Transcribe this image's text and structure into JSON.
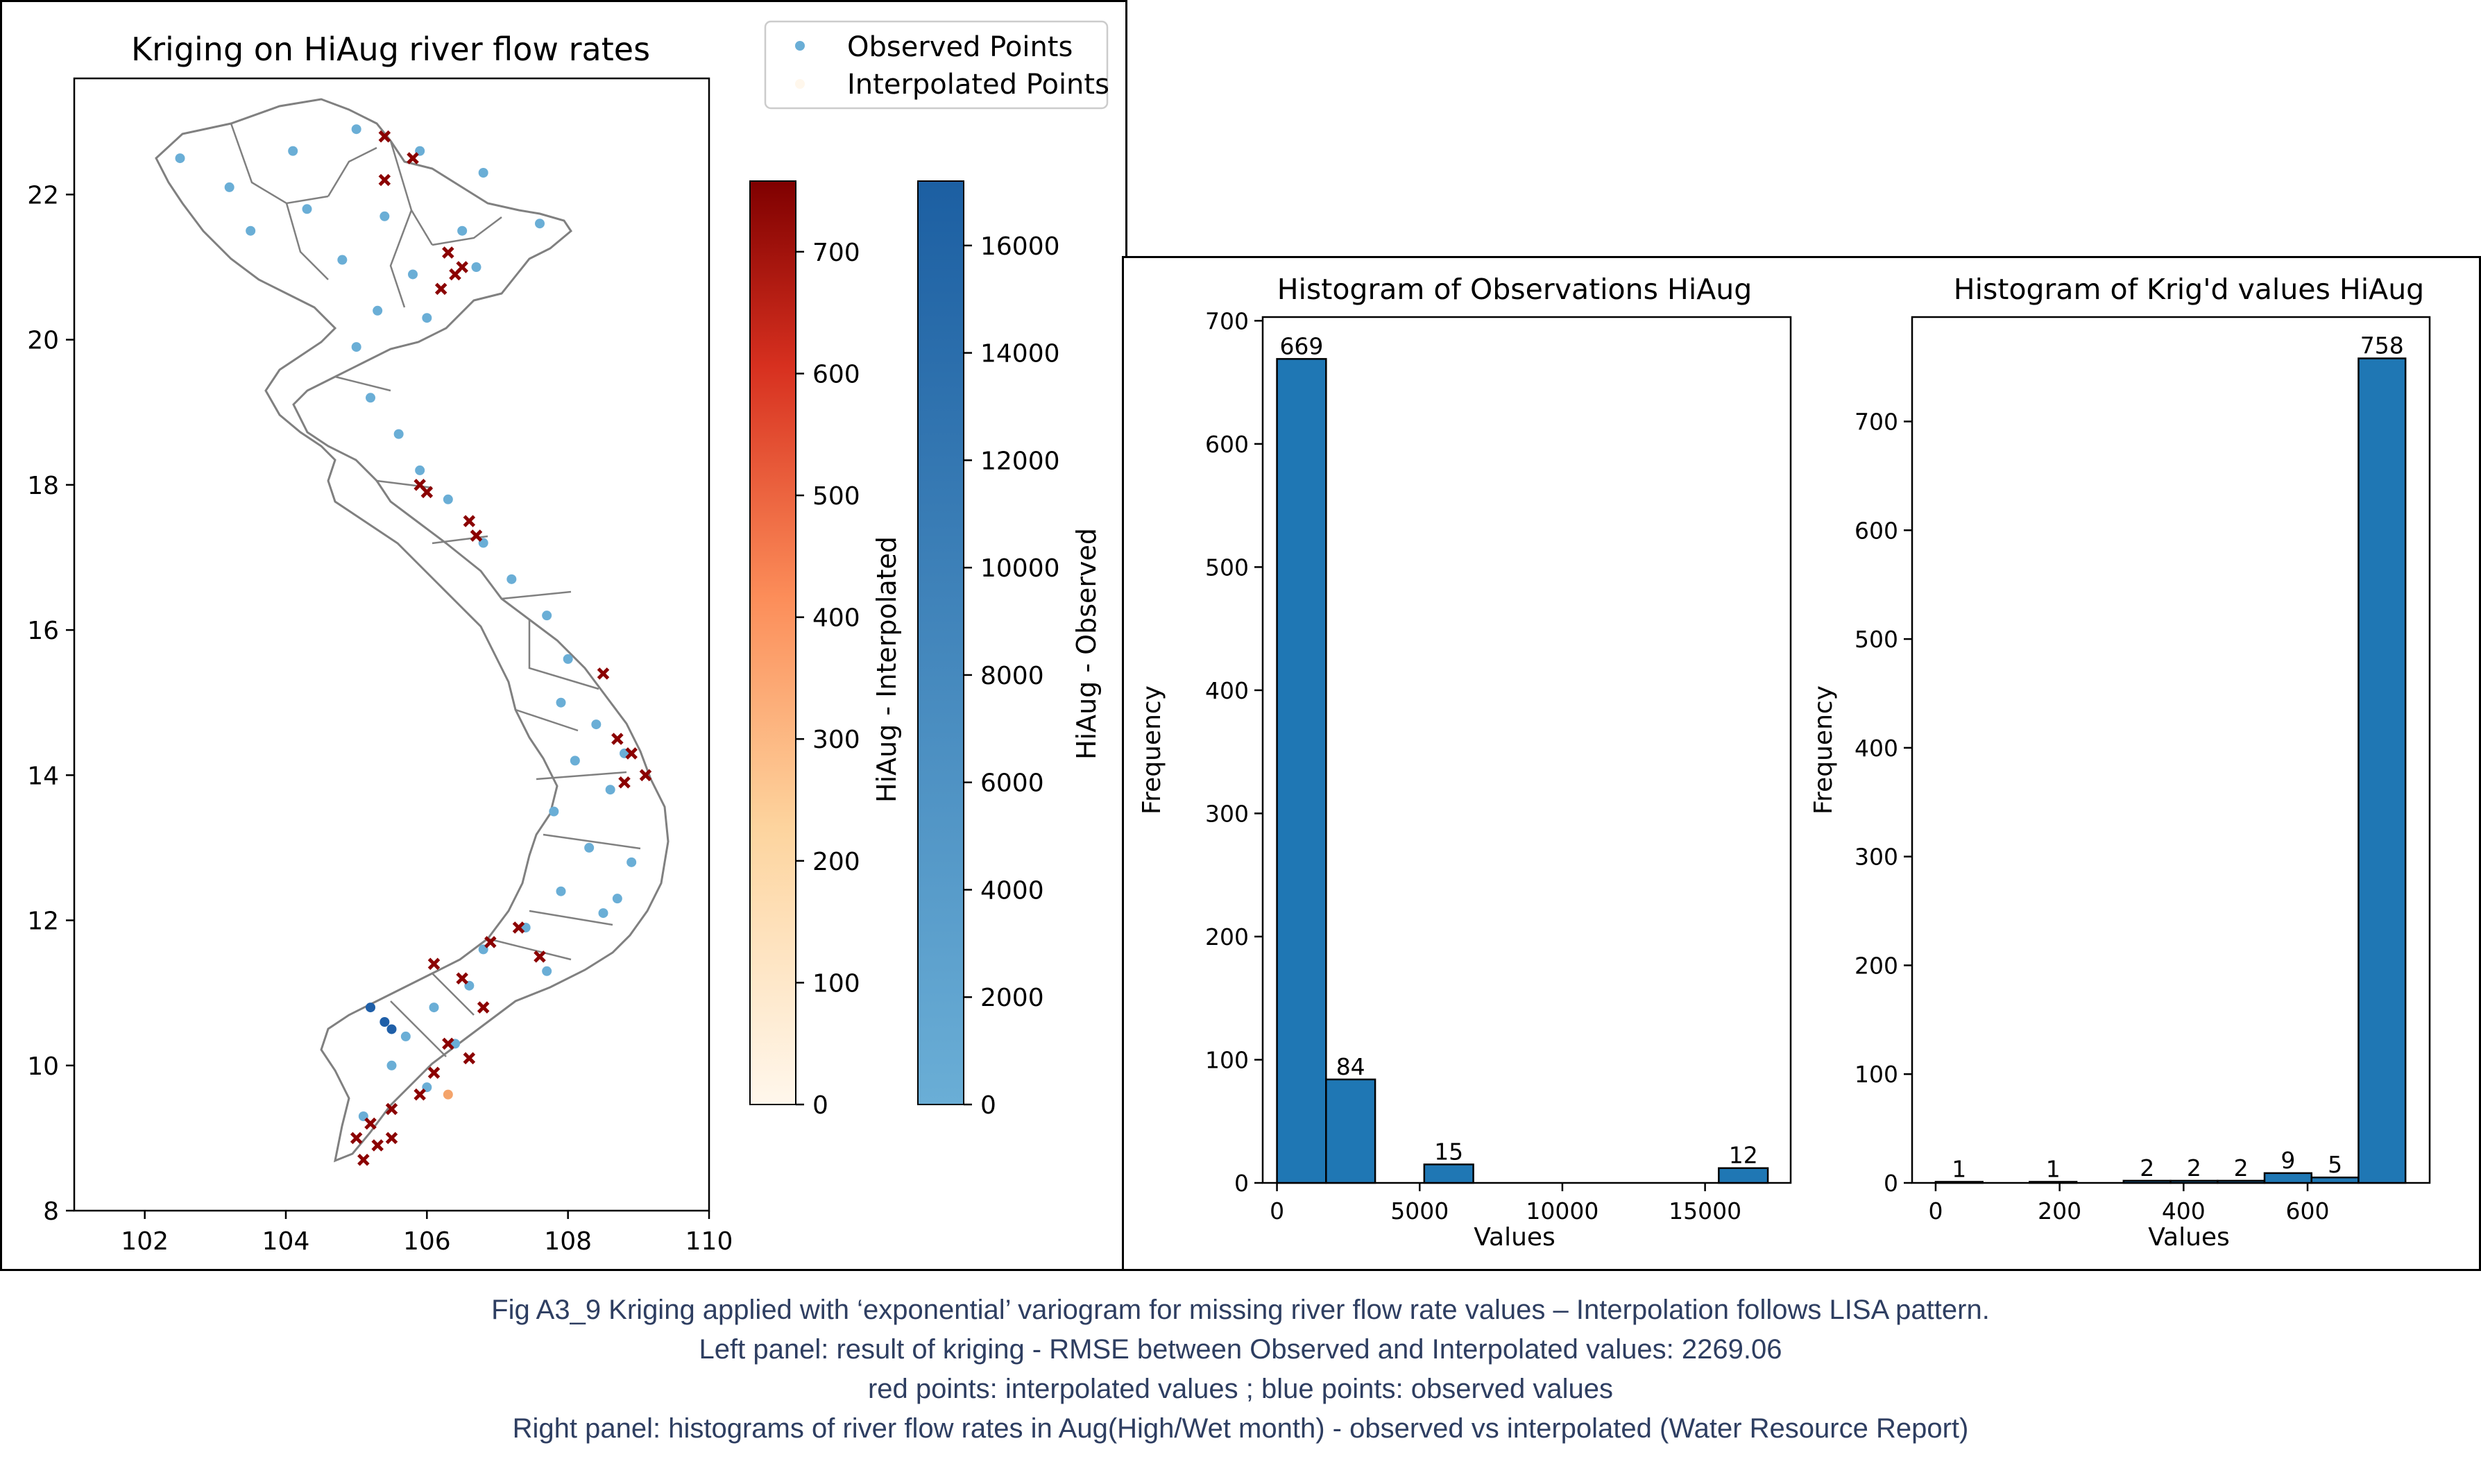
{
  "chart_data": [
    {
      "type": "scatter",
      "title": "Kriging on HiAug river flow rates",
      "xlabel": "",
      "ylabel": "",
      "xlim": [
        101,
        110
      ],
      "ylim": [
        8,
        23.6
      ],
      "xticks": [
        102,
        104,
        106,
        108,
        110
      ],
      "yticks": [
        8,
        10,
        12,
        14,
        16,
        18,
        20,
        22
      ],
      "legend": {
        "position": "top-right",
        "entries": [
          "Observed Points",
          "Interpolated Points"
        ]
      },
      "series": [
        {
          "name": "Observed Points",
          "marker": "dot",
          "color": "#6aaed6",
          "points": [
            [
              102.5,
              22.5
            ],
            [
              103.2,
              22.1
            ],
            [
              104.1,
              22.6
            ],
            [
              105.0,
              22.9
            ],
            [
              105.9,
              22.6
            ],
            [
              106.8,
              22.3
            ],
            [
              107.6,
              21.6
            ],
            [
              106.5,
              21.5
            ],
            [
              105.4,
              21.7
            ],
            [
              104.3,
              21.8
            ],
            [
              103.5,
              21.5
            ],
            [
              104.8,
              21.1
            ],
            [
              105.8,
              20.9
            ],
            [
              106.7,
              21.0
            ],
            [
              105.3,
              20.4
            ],
            [
              106.0,
              20.3
            ],
            [
              105.0,
              19.9
            ],
            [
              105.2,
              19.2
            ],
            [
              105.6,
              18.7
            ],
            [
              105.9,
              18.2
            ],
            [
              106.3,
              17.8
            ],
            [
              106.8,
              17.2
            ],
            [
              107.2,
              16.7
            ],
            [
              107.7,
              16.2
            ],
            [
              108.0,
              15.6
            ],
            [
              107.9,
              15.0
            ],
            [
              108.4,
              14.7
            ],
            [
              108.1,
              14.2
            ],
            [
              108.6,
              13.8
            ],
            [
              107.8,
              13.5
            ],
            [
              108.3,
              13.0
            ],
            [
              108.9,
              12.8
            ],
            [
              107.9,
              12.4
            ],
            [
              108.5,
              12.1
            ],
            [
              107.4,
              11.9
            ],
            [
              106.8,
              11.6
            ],
            [
              107.7,
              11.3
            ],
            [
              106.6,
              11.1
            ],
            [
              106.1,
              10.8
            ],
            [
              105.7,
              10.4
            ],
            [
              105.5,
              10.0
            ],
            [
              106.0,
              9.7
            ],
            [
              105.1,
              9.3
            ],
            [
              106.4,
              10.3
            ],
            [
              108.8,
              14.3
            ],
            [
              108.7,
              12.3
            ]
          ]
        },
        {
          "name": "Interpolated Points",
          "marker": "x",
          "color": "#8b0000",
          "points": [
            [
              106.3,
              21.2
            ],
            [
              106.4,
              20.9
            ],
            [
              106.2,
              20.7
            ],
            [
              106.5,
              21.0
            ],
            [
              105.4,
              22.8
            ],
            [
              105.8,
              22.5
            ],
            [
              105.4,
              22.2
            ],
            [
              105.9,
              18.0
            ],
            [
              106.0,
              17.9
            ],
            [
              106.6,
              17.5
            ],
            [
              106.7,
              17.3
            ],
            [
              108.7,
              14.5
            ],
            [
              108.9,
              14.3
            ],
            [
              109.1,
              14.0
            ],
            [
              108.8,
              13.9
            ],
            [
              108.5,
              15.4
            ],
            [
              106.1,
              11.4
            ],
            [
              106.5,
              11.2
            ],
            [
              106.9,
              11.7
            ],
            [
              107.3,
              11.9
            ],
            [
              107.6,
              11.5
            ],
            [
              106.8,
              10.8
            ],
            [
              106.3,
              10.3
            ],
            [
              106.6,
              10.1
            ],
            [
              106.1,
              9.9
            ],
            [
              105.9,
              9.6
            ],
            [
              105.5,
              9.4
            ],
            [
              105.2,
              9.2
            ],
            [
              105.0,
              9.0
            ],
            [
              105.3,
              8.9
            ],
            [
              105.1,
              8.7
            ],
            [
              105.5,
              9.0
            ]
          ]
        },
        {
          "name": "",
          "marker": "dot",
          "color": "#1f5fa8",
          "points": [
            [
              105.2,
              10.8
            ],
            [
              105.4,
              10.6
            ],
            [
              105.5,
              10.5
            ]
          ]
        },
        {
          "name": "",
          "marker": "dot",
          "color": "#f4a46b",
          "points": [
            [
              106.3,
              9.6
            ]
          ]
        }
      ],
      "colorbars": [
        {
          "label": "HiAug - Interpolated",
          "colormap": "OrRd",
          "range": [
            0,
            758
          ],
          "ticks": [
            0,
            100,
            200,
            300,
            400,
            500,
            600,
            700
          ],
          "color_low": "#fff7ec",
          "color_mid": "#fc8d59",
          "color_high": "#7f0000"
        },
        {
          "label": "HiAug - Observed",
          "colormap": "Blues",
          "range": [
            0,
            17200
          ],
          "ticks": [
            0,
            2000,
            4000,
            6000,
            8000,
            10000,
            12000,
            14000,
            16000
          ],
          "color_low": "#6aaed6",
          "color_high": "#1c5fa2"
        }
      ]
    },
    {
      "type": "bar",
      "title": "Histogram of Observations HiAug",
      "xlabel": "Values",
      "ylabel": "Frequency",
      "xlim": [
        -500,
        18000
      ],
      "ylim": [
        0,
        703
      ],
      "xticks": [
        0,
        5000,
        10000,
        15000
      ],
      "yticks": [
        0,
        100,
        200,
        300,
        400,
        500,
        600,
        700
      ],
      "bins": [
        [
          0,
          1720
        ],
        [
          1720,
          3440
        ],
        [
          3440,
          5160
        ],
        [
          5160,
          6880
        ],
        [
          6880,
          8600
        ],
        [
          8600,
          10320
        ],
        [
          10320,
          12040
        ],
        [
          12040,
          13760
        ],
        [
          13760,
          15480
        ],
        [
          15480,
          17200
        ]
      ],
      "values": [
        669,
        84,
        0,
        15,
        0,
        0,
        0,
        0,
        0,
        12
      ],
      "labels": [
        "669",
        "84",
        "",
        "15",
        "",
        "",
        "",
        "",
        "",
        "12"
      ],
      "color": "#1f77b4"
    },
    {
      "type": "bar",
      "title": "Histogram of Krig'd values HiAug",
      "xlabel": "Values",
      "ylabel": "Frequency",
      "xlim": [
        -38,
        797
      ],
      "ylim": [
        0,
        796
      ],
      "xticks": [
        0,
        200,
        400,
        600
      ],
      "yticks": [
        0,
        100,
        200,
        300,
        400,
        500,
        600,
        700
      ],
      "bins": [
        [
          0,
          75.8
        ],
        [
          75.8,
          151.6
        ],
        [
          151.6,
          227.4
        ],
        [
          227.4,
          303.2
        ],
        [
          303.2,
          379
        ],
        [
          379,
          454.8
        ],
        [
          454.8,
          530.6
        ],
        [
          530.6,
          606.4
        ],
        [
          606.4,
          682.2
        ],
        [
          682.2,
          758
        ]
      ],
      "values": [
        1,
        0,
        1,
        0,
        2,
        2,
        2,
        9,
        5,
        758
      ],
      "labels": [
        "1",
        "",
        "1",
        "",
        "2",
        "2",
        "2",
        "9",
        "5",
        "758"
      ],
      "color": "#1f77b4"
    }
  ],
  "caption": {
    "line1": "Fig A3_9 Kriging applied with ‘exponential’ variogram for missing river flow rate values – Interpolation follows LISA pattern.",
    "line2": "Left panel: result of kriging - RMSE between Observed and Interpolated values: 2269.06",
    "line3": "red points: interpolated values ; blue points: observed values",
    "line4": "Right panel: histograms of river flow rates in Aug(High/Wet month) - observed vs interpolated (Water Resource Report)"
  }
}
